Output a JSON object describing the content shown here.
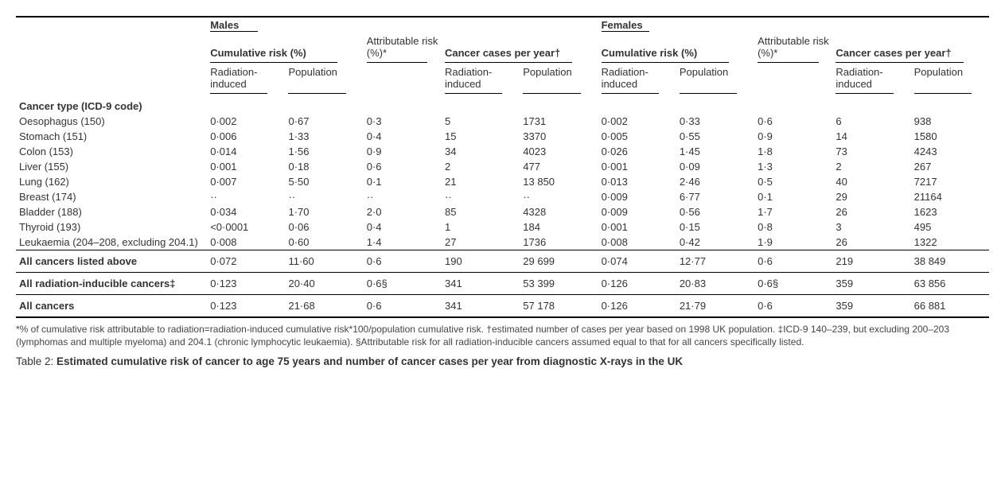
{
  "header": {
    "sex": [
      "Males",
      "Females"
    ],
    "groups": {
      "cumulative": "Cumulative risk (%)",
      "attributable": "Attributable risk (%)*",
      "cases": "Cancer cases per year†"
    },
    "sub": {
      "radiation": "Radiation-induced",
      "population": "Population"
    }
  },
  "section_head": "Cancer type (ICD-9 code)",
  "rows": [
    {
      "label": "Oesophagus (150)",
      "m": [
        "0·002",
        "0·67",
        "0·3",
        "5",
        "1731"
      ],
      "f": [
        "0·002",
        "0·33",
        "0·6",
        "6",
        "938"
      ]
    },
    {
      "label": "Stomach (151)",
      "m": [
        "0·006",
        "1·33",
        "0·4",
        "15",
        "3370"
      ],
      "f": [
        "0·005",
        "0·55",
        "0·9",
        "14",
        "1580"
      ]
    },
    {
      "label": "Colon (153)",
      "m": [
        "0·014",
        "1·56",
        "0·9",
        "34",
        "4023"
      ],
      "f": [
        "0·026",
        "1·45",
        "1·8",
        "73",
        "4243"
      ]
    },
    {
      "label": "Liver (155)",
      "m": [
        "0·001",
        "0·18",
        "0·6",
        "2",
        "477"
      ],
      "f": [
        "0·001",
        "0·09",
        "1·3",
        "2",
        "267"
      ]
    },
    {
      "label": "Lung (162)",
      "m": [
        "0·007",
        "5·50",
        "0·1",
        "21",
        "13 850"
      ],
      "f": [
        "0·013",
        "2·46",
        "0·5",
        "40",
        "7217"
      ]
    },
    {
      "label": "Breast (174)",
      "m": [
        "··",
        "··",
        "··",
        "··",
        "··"
      ],
      "f": [
        "0·009",
        "6·77",
        "0·1",
        "29",
        "21164"
      ]
    },
    {
      "label": "Bladder (188)",
      "m": [
        "0·034",
        "1·70",
        "2·0",
        "85",
        "4328"
      ],
      "f": [
        "0·009",
        "0·56",
        "1·7",
        "26",
        "1623"
      ]
    },
    {
      "label": "Thyroid (193)",
      "m": [
        "<0·0001",
        "0·06",
        "0·4",
        "1",
        "184"
      ],
      "f": [
        "0·001",
        "0·15",
        "0·8",
        "3",
        "495"
      ]
    },
    {
      "label": "Leukaemia (204–208, excluding 204.1)",
      "m": [
        "0·008",
        "0·60",
        "1·4",
        "27",
        "1736"
      ],
      "f": [
        "0·008",
        "0·42",
        "1·9",
        "26",
        "1322"
      ]
    }
  ],
  "summary": [
    {
      "label": "All cancers listed above",
      "m": [
        "0·072",
        "11·60",
        "0·6",
        "190",
        "29 699"
      ],
      "f": [
        "0·074",
        "12·77",
        "0·6",
        "219",
        "38 849"
      ]
    },
    {
      "label": "All radiation-inducible cancers‡",
      "m": [
        "0·123",
        "20·40",
        "0·6§",
        "341",
        "53 399"
      ],
      "f": [
        "0·126",
        "20·83",
        "0·6§",
        "359",
        "63 856"
      ]
    },
    {
      "label": "All cancers",
      "m": [
        "0·123",
        "21·68",
        "0·6",
        "341",
        "57 178"
      ],
      "f": [
        "0·126",
        "21·79",
        "0·6",
        "359",
        "66 881"
      ]
    }
  ],
  "footnotes": "*% of cumulative risk attributable to radiation=radiation-induced cumulative risk*100/population cumulative risk. †estimated number of cases per year based on 1998 UK population. ‡ICD-9 140–239, but excluding 200–203 (lymphomas and multiple myeloma) and 204.1 (chronic lymphocytic leukaemia). §Attributable risk for all radiation-inducible cancers assumed equal to that for all cancers specifically listed.",
  "caption_prefix": "Table 2: ",
  "caption": "Estimated cumulative risk of cancer to age 75 years and number of cancer cases per year from diagnostic X-rays in the UK"
}
